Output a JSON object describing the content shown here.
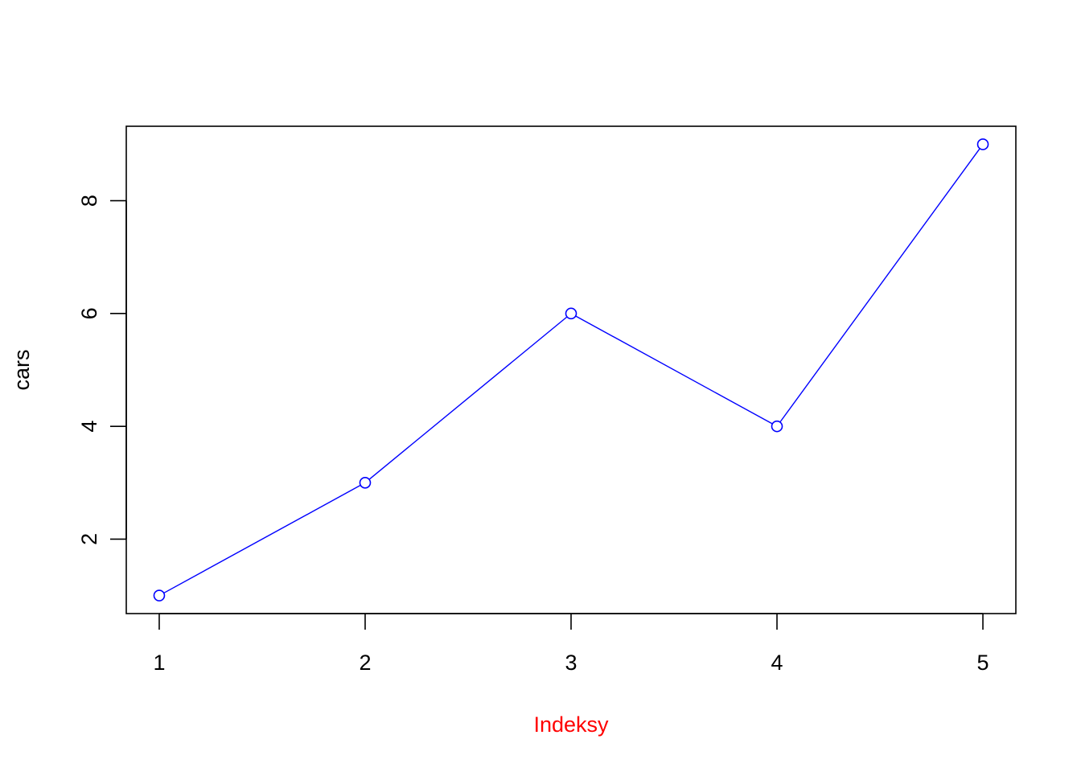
{
  "chart_data": {
    "type": "line",
    "title": "",
    "xlabel": "Indeksy",
    "ylabel": "cars",
    "x": [
      1,
      2,
      3,
      4,
      5
    ],
    "series": [
      {
        "values": [
          1,
          3,
          6,
          4,
          9
        ],
        "color": "#0000ff",
        "marker": "open-circle"
      }
    ],
    "xticks": [
      "1",
      "2",
      "3",
      "4",
      "5"
    ],
    "yticks": [
      "2",
      "4",
      "6",
      "8"
    ],
    "xlim": [
      0.84,
      5.16
    ],
    "ylim": [
      0.68,
      9.32
    ],
    "grid": false,
    "xlabel_color": "#ff0000",
    "ylabel_color": "#000000"
  }
}
